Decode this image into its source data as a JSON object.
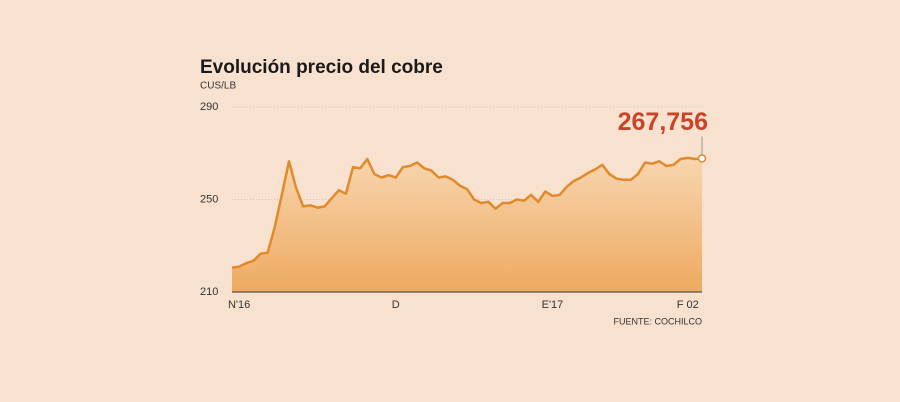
{
  "chart_data": {
    "type": "line",
    "title": "Evolución precio del cobre",
    "subtitle": "CUS/LB",
    "source": "FUENTE: COCHILCO",
    "categories": [
      null,
      "N'16",
      null,
      null,
      null,
      null,
      null,
      null,
      null,
      null,
      null,
      null,
      null,
      null,
      null,
      null,
      null,
      null,
      null,
      null,
      null,
      null,
      null,
      "D",
      null,
      null,
      null,
      null,
      null,
      null,
      null,
      null,
      null,
      null,
      null,
      null,
      null,
      null,
      null,
      null,
      null,
      null,
      null,
      null,
      null,
      "E'17",
      null,
      null,
      null,
      null,
      null,
      null,
      null,
      null,
      null,
      null,
      null,
      null,
      null,
      null,
      null,
      null,
      null,
      null,
      "F 02",
      null,
      null
    ],
    "values": [
      220.5,
      221,
      222.5,
      223.5,
      226.5,
      227,
      238,
      252,
      266.5,
      255,
      247,
      247.5,
      246.5,
      247,
      250.5,
      254,
      252.5,
      264,
      263.5,
      267.5,
      261,
      259.5,
      260.5,
      259.5,
      264,
      264.5,
      266,
      263.5,
      262.5,
      259.5,
      260,
      258.5,
      256,
      254.5,
      250,
      248.5,
      249,
      246,
      248.5,
      248.5,
      250,
      249.5,
      252,
      249,
      253.5,
      251.5,
      252,
      255.5,
      258,
      259.5,
      261.5,
      263,
      265,
      261,
      259,
      258.5,
      258.5,
      261,
      266,
      265.5,
      266.5,
      264.5,
      265,
      267.5,
      268,
      267.5,
      267.756
    ],
    "value_labels": [
      null,
      null,
      null,
      null,
      null,
      null,
      null,
      null,
      null,
      null,
      null,
      null,
      null,
      null,
      null,
      null,
      null,
      null,
      null,
      null,
      null,
      null,
      null,
      null,
      null,
      null,
      null,
      null,
      null,
      null,
      null,
      null,
      null,
      null,
      null,
      null,
      null,
      null,
      null,
      null,
      null,
      null,
      null,
      null,
      null,
      null,
      null,
      null,
      null,
      null,
      null,
      null,
      null,
      null,
      null,
      null,
      null,
      null,
      null,
      null,
      null,
      null,
      null,
      null,
      null,
      null,
      "267,756"
    ],
    "color": "#e08a2c",
    "ylim": [
      210,
      290
    ],
    "yticks": [
      210,
      250,
      290
    ],
    "grid": true
  }
}
